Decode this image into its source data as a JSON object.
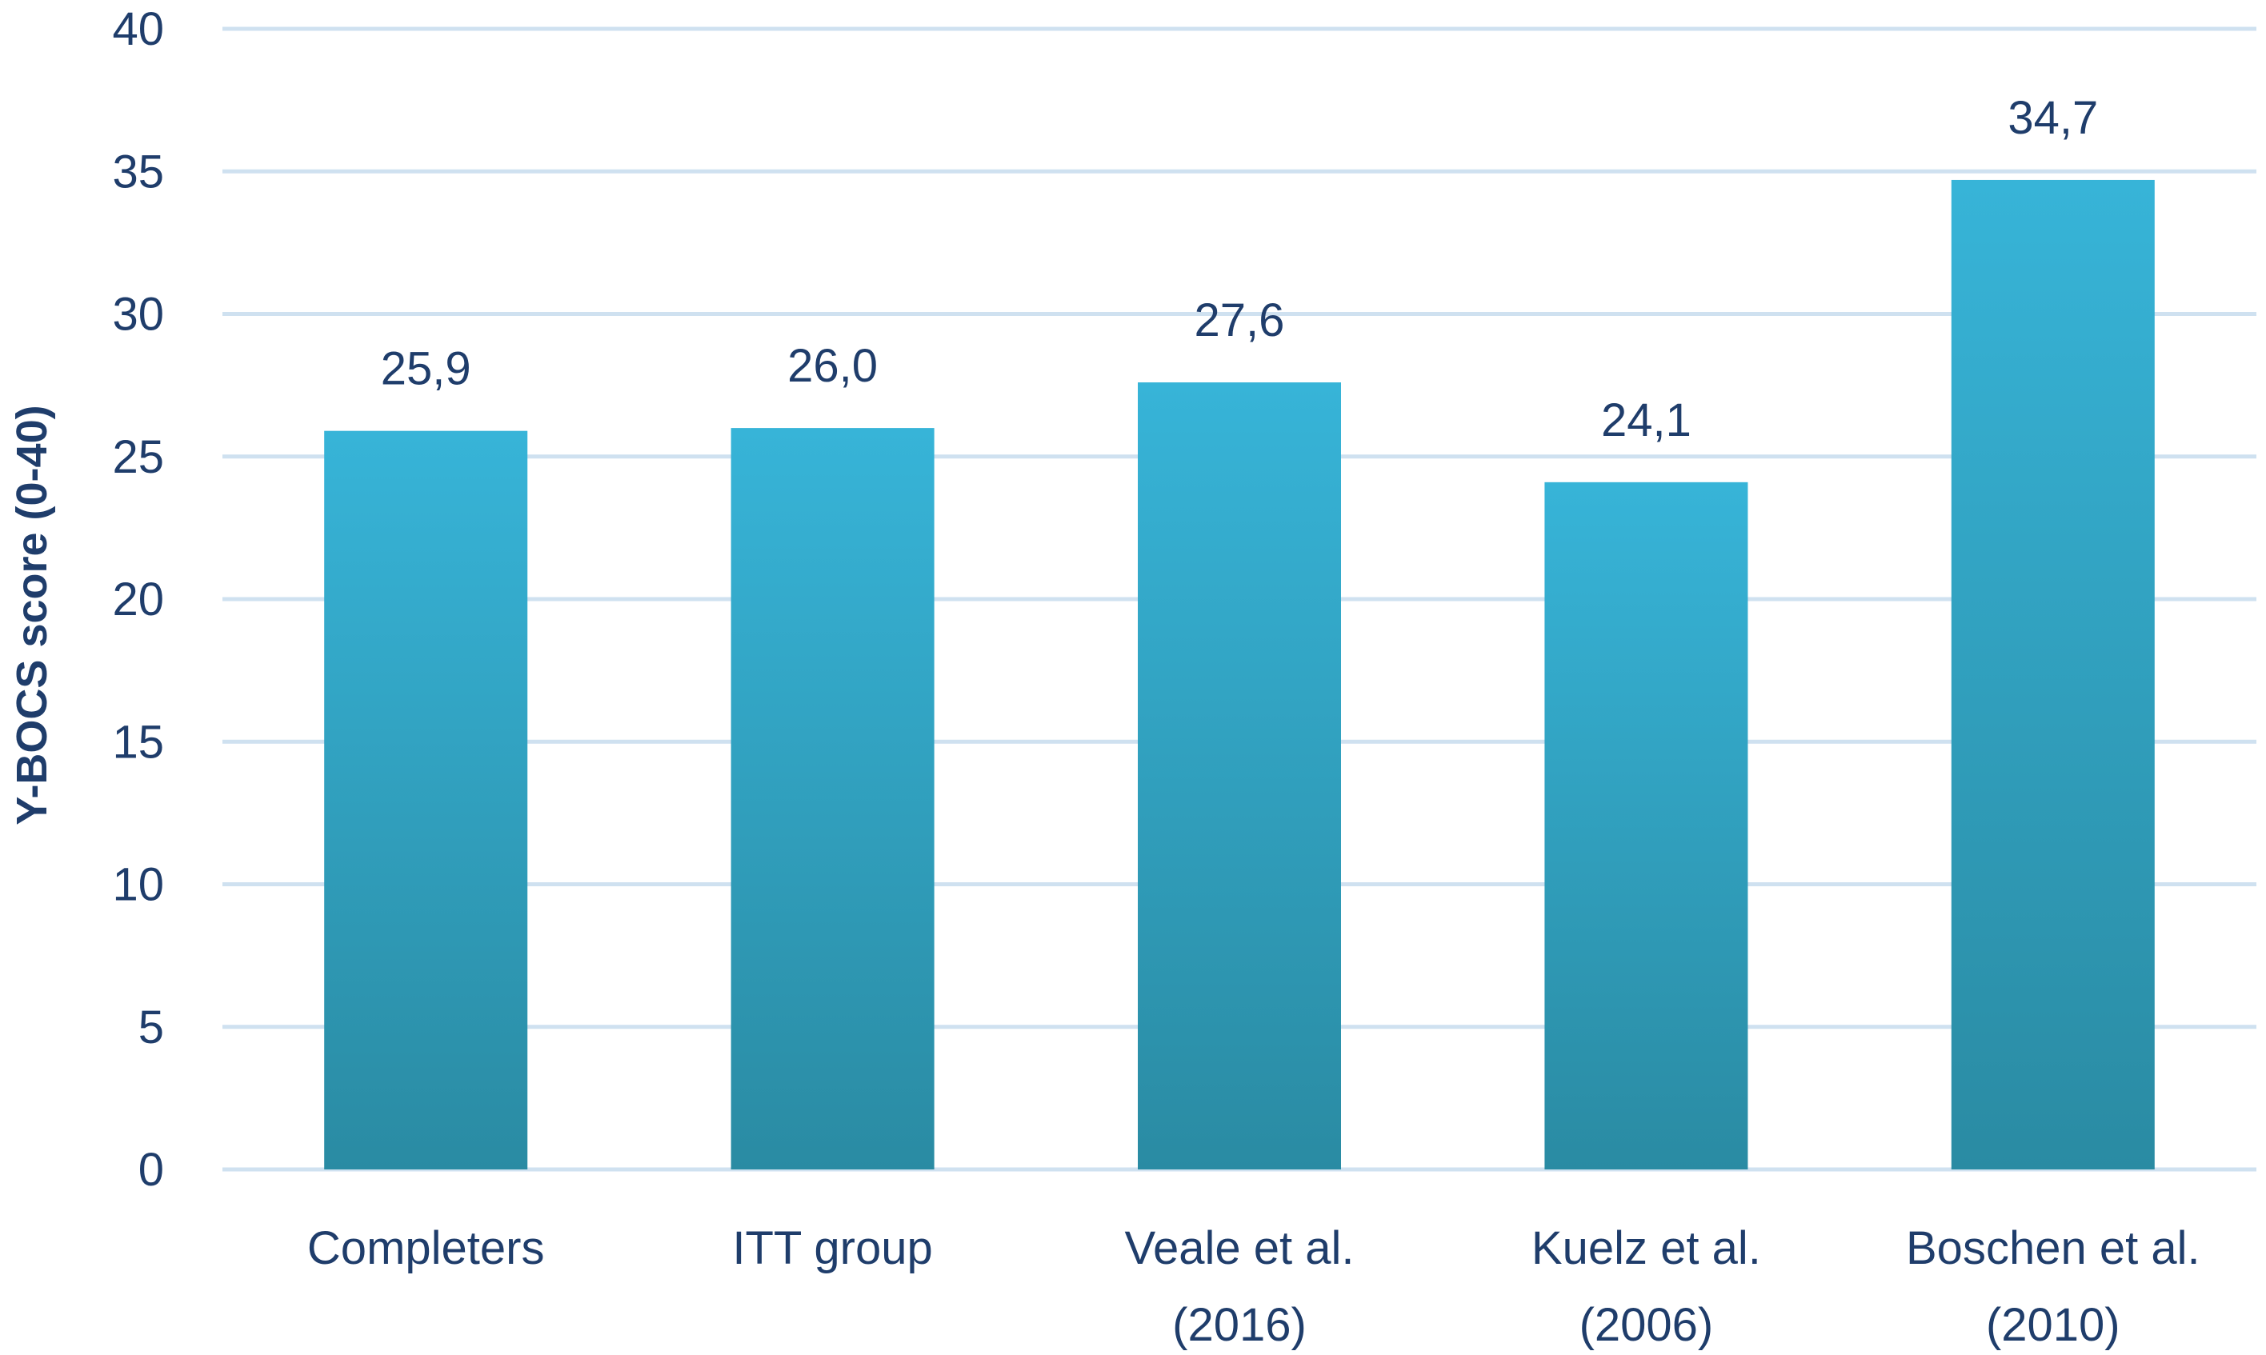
{
  "chart_data": {
    "type": "bar",
    "categories": [
      [
        "Completers"
      ],
      [
        "ITT group"
      ],
      [
        "Veale et al.",
        "(2016)"
      ],
      [
        "Kuelz et al.",
        "(2006)"
      ],
      [
        "Boschen et al.",
        "(2010)"
      ]
    ],
    "values": [
      25.9,
      26.0,
      27.6,
      24.1,
      34.7
    ],
    "data_labels": [
      "25,9",
      "26,0",
      "27,6",
      "24,1",
      "34,7"
    ],
    "title": "",
    "xlabel": "",
    "ylabel": "Y-BOCS score (0-40)",
    "ylim": [
      0,
      40
    ],
    "yticks": [
      0,
      5,
      10,
      15,
      20,
      25,
      30,
      35,
      40
    ],
    "grid": true,
    "legend": "none",
    "colors": {
      "bar_top": "#37b4d8",
      "bar_bottom": "#2a8ba3",
      "gridline": "#cfe1f0",
      "text": "#1f3d6b"
    }
  }
}
